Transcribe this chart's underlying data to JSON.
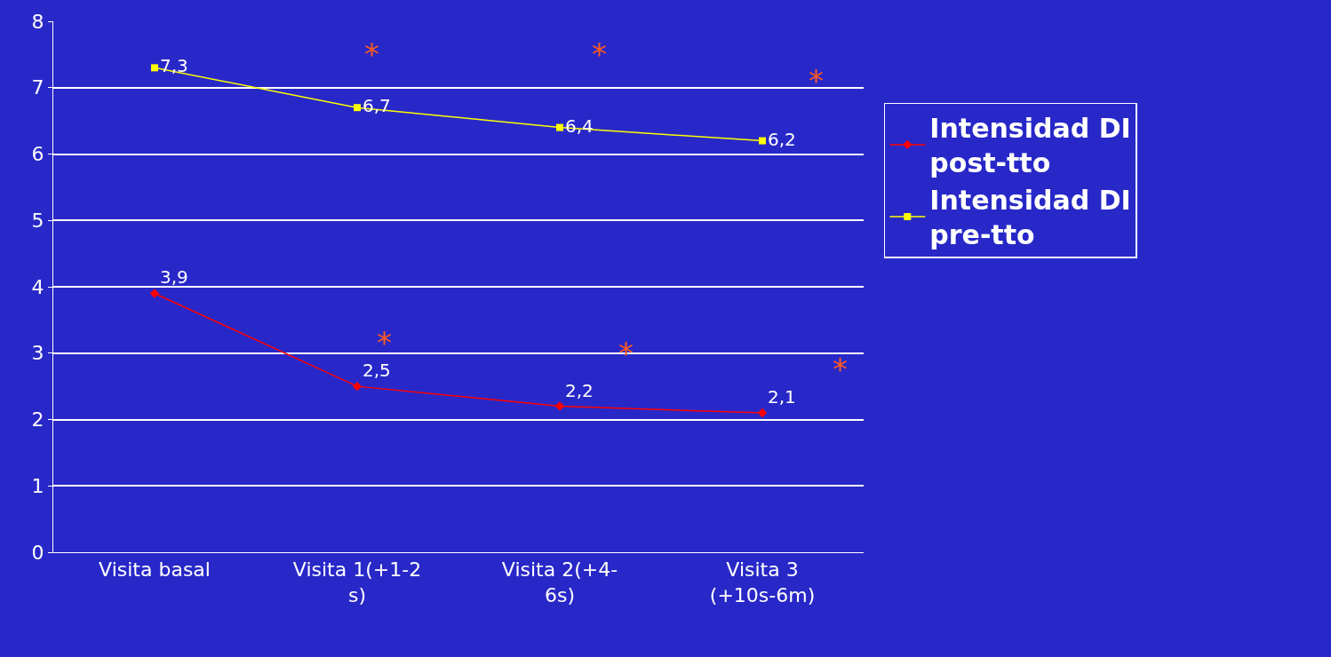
{
  "chart_data": {
    "type": "line",
    "categories": [
      "Visita basal",
      "Visita 1(+1-2\ns)",
      "Visita 2(+4-\n6s)",
      "Visita 3\n(+10s-6m)"
    ],
    "series": [
      {
        "name": "Intensidad DI post-tto",
        "color": "#ff0000",
        "marker": "diamond",
        "values": [
          3.9,
          2.5,
          2.2,
          2.1
        ],
        "value_labels": [
          "3,9",
          "2,5",
          "2,2",
          "2,1"
        ]
      },
      {
        "name": "Intensidad DI pre-tto",
        "color": "#ffff00",
        "marker": "square",
        "values": [
          7.3,
          6.7,
          6.4,
          6.2
        ],
        "value_labels": [
          "7,3",
          "6,7",
          "6,4",
          "6,2"
        ]
      }
    ],
    "ylim": [
      0,
      8
    ],
    "yticks": [
      0,
      1,
      2,
      3,
      4,
      5,
      6,
      7,
      8
    ],
    "grid": "y",
    "legend": "right",
    "annotations": [
      "*",
      "*",
      "*",
      "*",
      "*",
      "*"
    ]
  }
}
